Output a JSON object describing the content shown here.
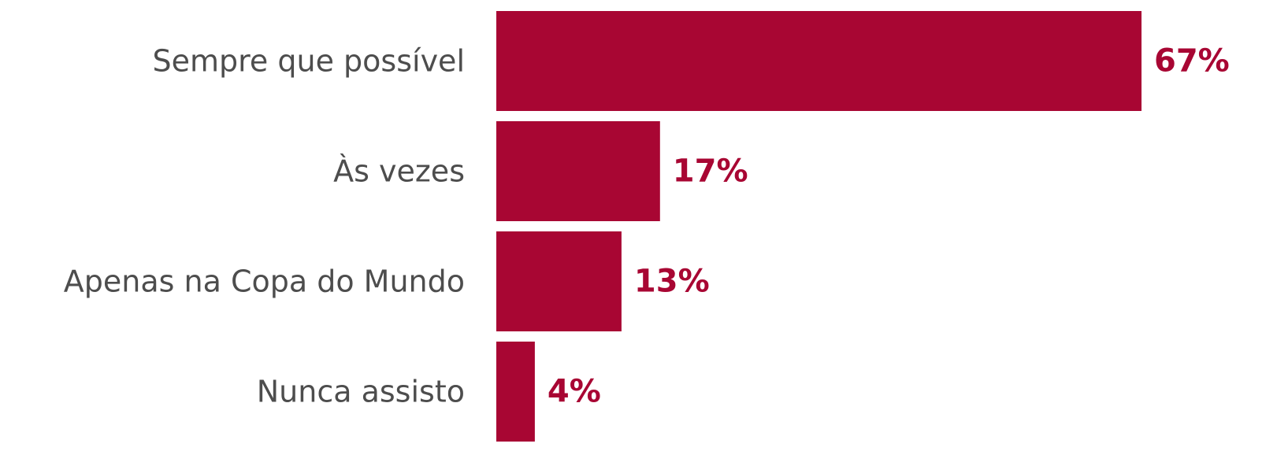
{
  "chart_data": {
    "type": "bar",
    "orientation": "horizontal",
    "categories": [
      "Sempre que possível",
      "Às vezes",
      "Apenas na Copa do Mundo",
      "Nunca assisto"
    ],
    "values": [
      67,
      17,
      13,
      4
    ],
    "value_labels": [
      "67%",
      "17%",
      "13%",
      "4%"
    ],
    "unit": "%",
    "xlim": [
      0,
      67
    ],
    "grid": false,
    "legend": "none",
    "colors": {
      "bar": "#A80633",
      "value_label": "#A80633",
      "category_label": "#4D4D4D"
    }
  }
}
